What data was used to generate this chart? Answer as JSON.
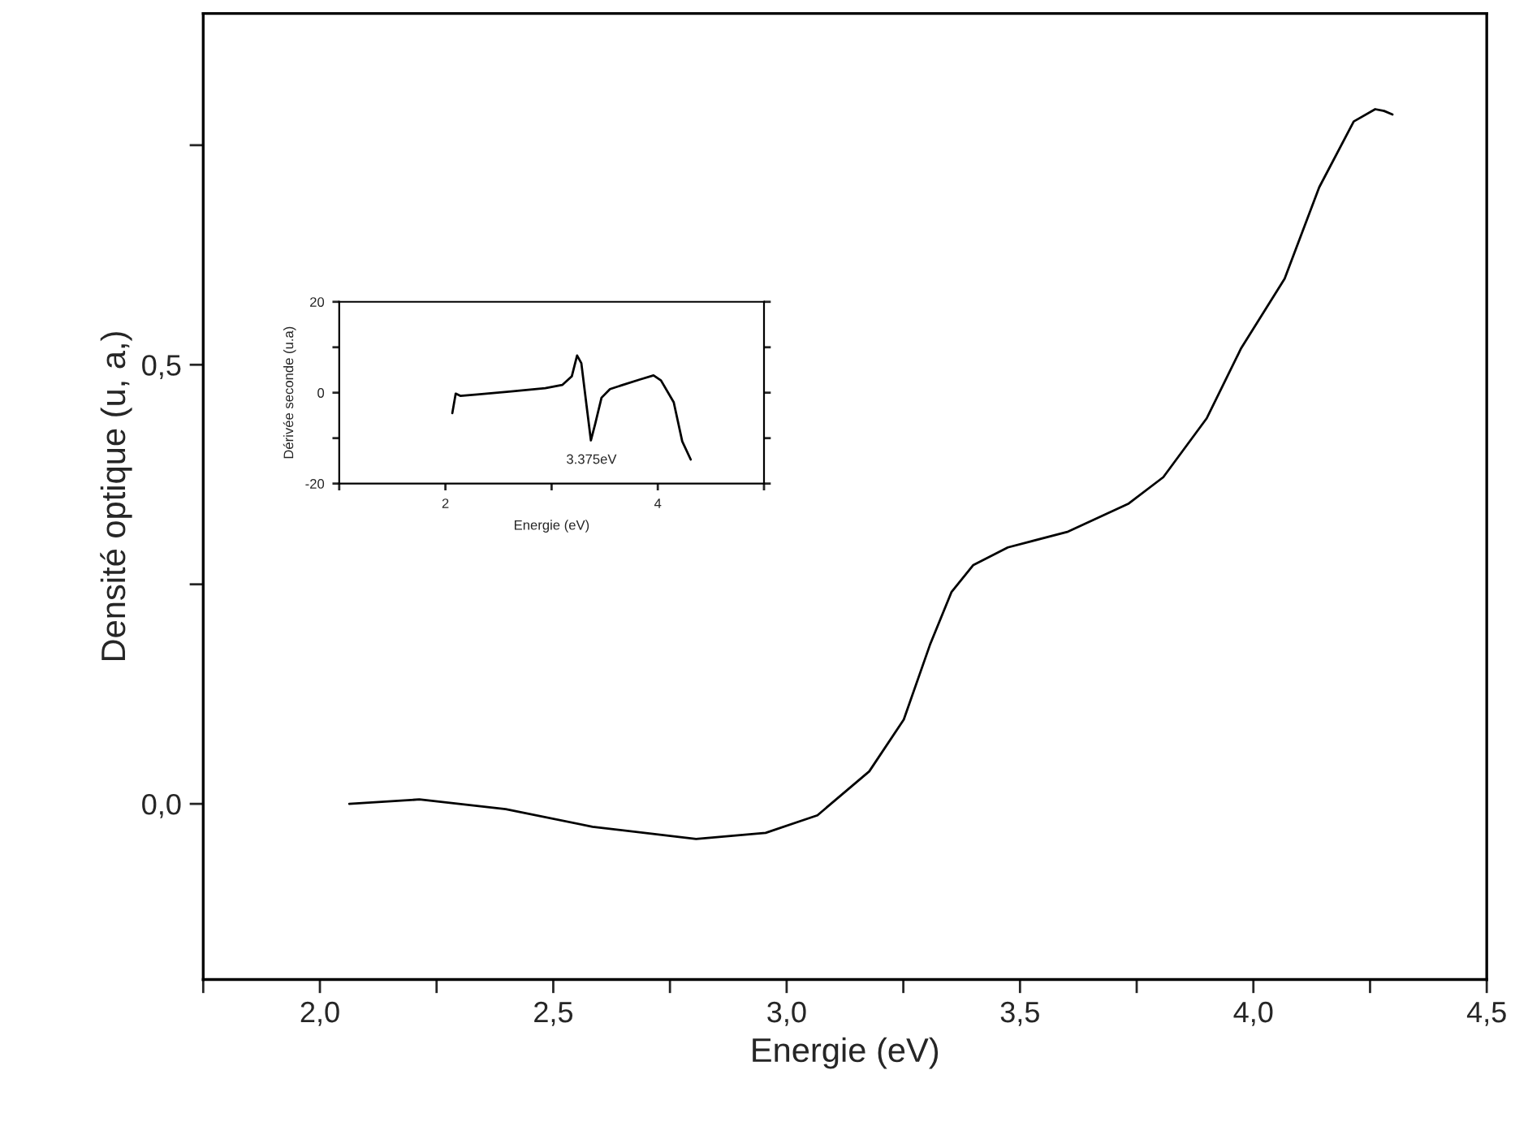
{
  "chart_data": [
    {
      "type": "line",
      "xlabel": "Energie (eV)",
      "ylabel": "Densité optique (u, a,)",
      "xlim": [
        1.75,
        4.5
      ],
      "ylim": [
        -0.2,
        0.9
      ],
      "xticks": [
        {
          "value": 1.75,
          "label": null
        },
        {
          "value": 2.0,
          "label": "2,0"
        },
        {
          "value": 2.25,
          "label": null
        },
        {
          "value": 2.5,
          "label": "2,5"
        },
        {
          "value": 2.75,
          "label": null
        },
        {
          "value": 3.0,
          "label": "3,0"
        },
        {
          "value": 3.25,
          "label": null
        },
        {
          "value": 3.5,
          "label": "3,5"
        },
        {
          "value": 3.75,
          "label": null
        },
        {
          "value": 4.0,
          "label": "4,0"
        },
        {
          "value": 4.25,
          "label": null
        },
        {
          "value": 4.5,
          "label": "4,5"
        }
      ],
      "yticks": [
        {
          "value": 0.0,
          "label": "0,0"
        },
        {
          "value": 0.25,
          "label": null
        },
        {
          "value": 0.5,
          "label": "0,5"
        },
        {
          "value": 0.75,
          "label": null
        }
      ],
      "grid": false,
      "legend": false,
      "series": [
        {
          "color": "#000000",
          "x": [
            2.063,
            2.213,
            2.398,
            2.584,
            2.806,
            2.955,
            3.066,
            3.177,
            3.251,
            3.307,
            3.353,
            3.4,
            3.474,
            3.603,
            3.733,
            3.807,
            3.9,
            3.974,
            4.067,
            4.141,
            4.215,
            4.261,
            4.28,
            4.298
          ],
          "values": [
            0.0,
            0.005,
            -0.006,
            -0.026,
            -0.04,
            -0.033,
            -0.013,
            0.037,
            0.096,
            0.181,
            0.241,
            0.272,
            0.292,
            0.31,
            0.342,
            0.372,
            0.439,
            0.519,
            0.598,
            0.702,
            0.777,
            0.791,
            0.789,
            0.785
          ]
        }
      ]
    },
    {
      "type": "line",
      "xlabel": "Energie (eV)",
      "ylabel": "Dérivée seconde (u.a)",
      "xlim": [
        1,
        5
      ],
      "ylim": [
        -20,
        20
      ],
      "xticks": [
        {
          "value": 1,
          "label": null
        },
        2,
        {
          "value": 3,
          "label": null
        },
        4,
        {
          "value": 5,
          "label": null
        }
      ],
      "yticks": [
        -20,
        {
          "value": -10,
          "label": null
        },
        0,
        {
          "value": 10,
          "label": null
        },
        20
      ],
      "grid": false,
      "legend": false,
      "annotations": [
        {
          "text": "3.375eV",
          "x": 3.375,
          "y": -10.5
        }
      ],
      "series": [
        {
          "color": "#000000",
          "x": [
            2.065,
            2.097,
            2.14,
            2.3,
            2.62,
            2.94,
            3.1,
            3.19,
            3.24,
            3.28,
            3.33,
            3.37,
            3.41,
            3.47,
            3.55,
            3.67,
            3.83,
            3.96,
            4.03,
            4.15,
            4.23,
            4.31
          ],
          "values": [
            -4.5,
            -0.2,
            -0.7,
            -0.4,
            0.3,
            1.0,
            1.7,
            3.6,
            8.2,
            6.5,
            -3.0,
            -10.5,
            -6.9,
            -1.1,
            0.8,
            1.7,
            2.9,
            3.8,
            2.7,
            -2.1,
            -10.7,
            -14.7
          ]
        }
      ]
    }
  ]
}
